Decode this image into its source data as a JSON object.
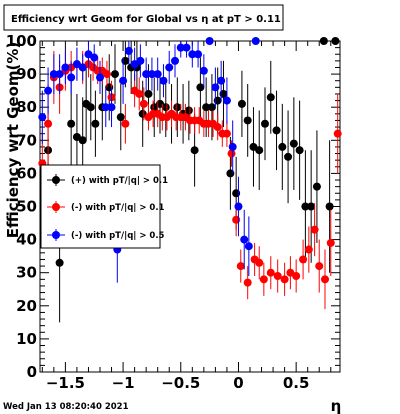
{
  "chart_data": {
    "type": "scatter",
    "title": "Efficiency wrt Geom for Global vs   η at pT > 0.11",
    "xlabel": "η",
    "ylabel": "Efficiency wrt Geom(%)",
    "xlim": [
      -1.72,
      0.88
    ],
    "ylim": [
      0,
      100
    ],
    "x_ticks": [
      -1.5,
      -1,
      -0.5,
      0,
      0.5
    ],
    "x_tick_labels": [
      "−1.5",
      "−1",
      "−0.5",
      "0",
      "0.5"
    ],
    "y_ticks": [
      0,
      10,
      20,
      30,
      40,
      50,
      60,
      70,
      80,
      90,
      100
    ],
    "y_tick_labels": [
      "0",
      "10",
      "20",
      "30",
      "40",
      "50",
      "60",
      "70",
      "80",
      "90",
      "100"
    ],
    "grid": false,
    "legend_placement": "middle-left",
    "timestamp": "Wed Jan 13 08:20:40 2021",
    "series": [
      {
        "name": "(+) with pT/|q| > 0.1",
        "color": "#000000",
        "points": [
          {
            "x": -1.65,
            "y": 67,
            "err": 12
          },
          {
            "x": -1.55,
            "y": 33,
            "err": 18
          },
          {
            "x": -1.45,
            "y": 75,
            "err": 15
          },
          {
            "x": -1.4,
            "y": 71,
            "err": 13
          },
          {
            "x": -1.35,
            "y": 70,
            "err": 13
          },
          {
            "x": -1.32,
            "y": 81,
            "err": 11
          },
          {
            "x": -1.28,
            "y": 80,
            "err": 10
          },
          {
            "x": -1.24,
            "y": 75,
            "err": 10
          },
          {
            "x": -1.18,
            "y": 80,
            "err": 10
          },
          {
            "x": -1.12,
            "y": 86,
            "err": 10
          },
          {
            "x": -1.07,
            "y": 90,
            "err": 9
          },
          {
            "x": -1.02,
            "y": 77,
            "err": 10
          },
          {
            "x": -0.98,
            "y": 94,
            "err": 8
          },
          {
            "x": -0.93,
            "y": 92,
            "err": 8
          },
          {
            "x": -0.88,
            "y": 92,
            "err": 8
          },
          {
            "x": -0.83,
            "y": 78,
            "err": 10
          },
          {
            "x": -0.78,
            "y": 84,
            "err": 9
          },
          {
            "x": -0.73,
            "y": 80,
            "err": 9
          },
          {
            "x": -0.68,
            "y": 81,
            "err": 9
          },
          {
            "x": -0.63,
            "y": 80,
            "err": 9
          },
          {
            "x": -0.58,
            "y": 78,
            "err": 9
          },
          {
            "x": -0.53,
            "y": 80,
            "err": 9
          },
          {
            "x": -0.48,
            "y": 78,
            "err": 9
          },
          {
            "x": -0.43,
            "y": 79,
            "err": 9
          },
          {
            "x": -0.38,
            "y": 67,
            "err": 11
          },
          {
            "x": -0.33,
            "y": 86,
            "err": 9
          },
          {
            "x": -0.28,
            "y": 80,
            "err": 9
          },
          {
            "x": -0.23,
            "y": 80,
            "err": 10
          },
          {
            "x": -0.18,
            "y": 82,
            "err": 10
          },
          {
            "x": -0.13,
            "y": 84,
            "err": 10
          },
          {
            "x": -0.07,
            "y": 60,
            "err": 11
          },
          {
            "x": -0.02,
            "y": 54,
            "err": 11
          },
          {
            "x": 0.03,
            "y": 81,
            "err": 10
          },
          {
            "x": 0.08,
            "y": 76,
            "err": 11
          },
          {
            "x": 0.13,
            "y": 68,
            "err": 12
          },
          {
            "x": 0.18,
            "y": 67,
            "err": 12
          },
          {
            "x": 0.23,
            "y": 75,
            "err": 11
          },
          {
            "x": 0.28,
            "y": 83,
            "err": 11
          },
          {
            "x": 0.33,
            "y": 73,
            "err": 12
          },
          {
            "x": 0.38,
            "y": 68,
            "err": 13
          },
          {
            "x": 0.43,
            "y": 65,
            "err": 14
          },
          {
            "x": 0.48,
            "y": 69,
            "err": 14
          },
          {
            "x": 0.53,
            "y": 67,
            "err": 15
          },
          {
            "x": 0.58,
            "y": 50,
            "err": 17
          },
          {
            "x": 0.63,
            "y": 50,
            "err": 17
          },
          {
            "x": 0.68,
            "y": 56,
            "err": 17
          },
          {
            "x": 0.74,
            "y": 100,
            "err": 0
          },
          {
            "x": 0.79,
            "y": 50,
            "err": 20
          },
          {
            "x": 0.84,
            "y": 100,
            "err": 0
          }
        ]
      },
      {
        "name": "(-) with pT/|q| > 0.1",
        "color": "#ff0000",
        "points": [
          {
            "x": -1.7,
            "y": 63,
            "err": 10
          },
          {
            "x": -1.65,
            "y": 75,
            "err": 12
          },
          {
            "x": -1.6,
            "y": 89,
            "err": 8
          },
          {
            "x": -1.55,
            "y": 86,
            "err": 8
          },
          {
            "x": -1.5,
            "y": 91,
            "err": 6
          },
          {
            "x": -1.45,
            "y": 92,
            "err": 5
          },
          {
            "x": -1.4,
            "y": 93,
            "err": 5
          },
          {
            "x": -1.35,
            "y": 92,
            "err": 5
          },
          {
            "x": -1.3,
            "y": 93,
            "err": 4
          },
          {
            "x": -1.26,
            "y": 92,
            "err": 4
          },
          {
            "x": -1.22,
            "y": 91,
            "err": 4
          },
          {
            "x": -1.18,
            "y": 91,
            "err": 4
          },
          {
            "x": -1.14,
            "y": 90,
            "err": 4
          },
          {
            "x": -1.1,
            "y": 83,
            "err": 5
          },
          {
            "x": -0.98,
            "y": 75,
            "err": 6
          },
          {
            "x": -0.9,
            "y": 85,
            "err": 5
          },
          {
            "x": -0.86,
            "y": 84,
            "err": 5
          },
          {
            "x": -0.82,
            "y": 81,
            "err": 5
          },
          {
            "x": -0.78,
            "y": 77,
            "err": 4
          },
          {
            "x": -0.74,
            "y": 78,
            "err": 4
          },
          {
            "x": -0.7,
            "y": 78,
            "err": 4
          },
          {
            "x": -0.66,
            "y": 77,
            "err": 4
          },
          {
            "x": -0.62,
            "y": 77,
            "err": 4
          },
          {
            "x": -0.58,
            "y": 78,
            "err": 4
          },
          {
            "x": -0.54,
            "y": 77,
            "err": 4
          },
          {
            "x": -0.5,
            "y": 77,
            "err": 4
          },
          {
            "x": -0.46,
            "y": 77,
            "err": 4
          },
          {
            "x": -0.42,
            "y": 76,
            "err": 4
          },
          {
            "x": -0.38,
            "y": 76,
            "err": 4
          },
          {
            "x": -0.34,
            "y": 76,
            "err": 4
          },
          {
            "x": -0.3,
            "y": 75,
            "err": 4
          },
          {
            "x": -0.26,
            "y": 75,
            "err": 4
          },
          {
            "x": -0.22,
            "y": 75,
            "err": 4
          },
          {
            "x": -0.18,
            "y": 74,
            "err": 4
          },
          {
            "x": -0.14,
            "y": 72,
            "err": 4
          },
          {
            "x": -0.1,
            "y": 72,
            "err": 4
          },
          {
            "x": -0.06,
            "y": 66,
            "err": 4
          },
          {
            "x": -0.02,
            "y": 46,
            "err": 5
          },
          {
            "x": 0.02,
            "y": 32,
            "err": 5
          },
          {
            "x": 0.08,
            "y": 27,
            "err": 5
          },
          {
            "x": 0.14,
            "y": 34,
            "err": 5
          },
          {
            "x": 0.18,
            "y": 33,
            "err": 5
          },
          {
            "x": 0.22,
            "y": 28,
            "err": 5
          },
          {
            "x": 0.28,
            "y": 30,
            "err": 5
          },
          {
            "x": 0.34,
            "y": 29,
            "err": 5
          },
          {
            "x": 0.4,
            "y": 28,
            "err": 5
          },
          {
            "x": 0.45,
            "y": 30,
            "err": 5
          },
          {
            "x": 0.5,
            "y": 29,
            "err": 5
          },
          {
            "x": 0.56,
            "y": 34,
            "err": 6
          },
          {
            "x": 0.61,
            "y": 37,
            "err": 7
          },
          {
            "x": 0.66,
            "y": 43,
            "err": 8
          },
          {
            "x": 0.7,
            "y": 32,
            "err": 8
          },
          {
            "x": 0.75,
            "y": 28,
            "err": 9
          },
          {
            "x": 0.8,
            "y": 39,
            "err": 10
          },
          {
            "x": 0.86,
            "y": 72,
            "err": 12
          }
        ]
      },
      {
        "name": "(-) with pT/|q| > 0.5",
        "color": "#0000ff",
        "points": [
          {
            "x": -1.7,
            "y": 77,
            "err": 8
          },
          {
            "x": -1.65,
            "y": 85,
            "err": 7
          },
          {
            "x": -1.6,
            "y": 90,
            "err": 6
          },
          {
            "x": -1.55,
            "y": 90,
            "err": 6
          },
          {
            "x": -1.5,
            "y": 92,
            "err": 5
          },
          {
            "x": -1.45,
            "y": 89,
            "err": 5
          },
          {
            "x": -1.4,
            "y": 93,
            "err": 5
          },
          {
            "x": -1.35,
            "y": 92,
            "err": 4
          },
          {
            "x": -1.3,
            "y": 96,
            "err": 4
          },
          {
            "x": -1.25,
            "y": 95,
            "err": 4
          },
          {
            "x": -1.2,
            "y": 89,
            "err": 5
          },
          {
            "x": -1.15,
            "y": 80,
            "err": 6
          },
          {
            "x": -1.1,
            "y": 80,
            "err": 6
          },
          {
            "x": -1.05,
            "y": 37,
            "err": 10
          },
          {
            "x": -1.0,
            "y": 88,
            "err": 7
          },
          {
            "x": -0.95,
            "y": 97,
            "err": 4
          },
          {
            "x": -0.9,
            "y": 93,
            "err": 5
          },
          {
            "x": -0.85,
            "y": 94,
            "err": 5
          },
          {
            "x": -0.8,
            "y": 90,
            "err": 5
          },
          {
            "x": -0.75,
            "y": 90,
            "err": 5
          },
          {
            "x": -0.7,
            "y": 90,
            "err": 5
          },
          {
            "x": -0.65,
            "y": 88,
            "err": 5
          },
          {
            "x": -0.6,
            "y": 92,
            "err": 5
          },
          {
            "x": -0.55,
            "y": 94,
            "err": 5
          },
          {
            "x": -0.5,
            "y": 98,
            "err": 3
          },
          {
            "x": -0.45,
            "y": 98,
            "err": 3
          },
          {
            "x": -0.4,
            "y": 96,
            "err": 4
          },
          {
            "x": -0.35,
            "y": 96,
            "err": 4
          },
          {
            "x": -0.3,
            "y": 91,
            "err": 5
          },
          {
            "x": -0.25,
            "y": 100,
            "err": 0
          },
          {
            "x": -0.2,
            "y": 86,
            "err": 6
          },
          {
            "x": -0.15,
            "y": 88,
            "err": 6
          },
          {
            "x": -0.1,
            "y": 82,
            "err": 7
          },
          {
            "x": -0.05,
            "y": 68,
            "err": 8
          },
          {
            "x": 0.0,
            "y": 50,
            "err": 9
          },
          {
            "x": 0.05,
            "y": 40,
            "err": 9
          },
          {
            "x": 0.09,
            "y": 38,
            "err": 9
          },
          {
            "x": 0.15,
            "y": 100,
            "err": 0
          }
        ]
      }
    ]
  }
}
